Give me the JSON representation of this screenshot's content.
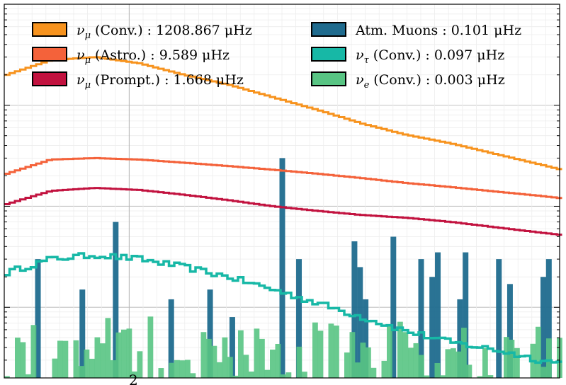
{
  "chart_data": {
    "type": "line",
    "x_scale": "log",
    "y_scale": "log",
    "grid": true,
    "legend_placement": "top",
    "visible_tick_label": "2",
    "x_range": [
      0,
      100
    ],
    "y_range": [
      0.02,
      100
    ],
    "series": [
      {
        "name": "νμ (Conv.) : 1208.867 μHz",
        "sym": "ν",
        "sub": "μ",
        "text": " (Conv.) : 1208.867 μHz",
        "color": "#f7931e",
        "style": "step",
        "x": [
          0,
          8,
          16,
          24,
          32,
          40,
          48,
          56,
          64,
          72,
          80,
          88,
          96,
          100
        ],
        "y": [
          20,
          28,
          30,
          26,
          20,
          16,
          12,
          9,
          6.6,
          5.1,
          4.2,
          3.3,
          2.6,
          2.3
        ]
      },
      {
        "name": "νμ (Astro.) : 9.589 μHz",
        "sym": "ν",
        "sub": "μ",
        "text": " (Astro.) : 9.589 μHz",
        "color": "#f4623a",
        "style": "step",
        "x": [
          0,
          8,
          16,
          24,
          32,
          40,
          48,
          56,
          64,
          72,
          80,
          88,
          96,
          100
        ],
        "y": [
          2.1,
          2.9,
          3.0,
          2.9,
          2.7,
          2.5,
          2.3,
          2.1,
          1.9,
          1.7,
          1.55,
          1.4,
          1.27,
          1.2
        ]
      },
      {
        "name": "νμ (Prompt.) : 1.668 μHz",
        "sym": "ν",
        "sub": "μ",
        "text": " (Prompt.) : 1.668 μHz",
        "color": "#c2123f",
        "style": "step",
        "x": [
          0,
          8,
          16,
          24,
          32,
          40,
          48,
          56,
          64,
          72,
          80,
          88,
          96,
          100
        ],
        "y": [
          1.05,
          1.42,
          1.52,
          1.45,
          1.3,
          1.15,
          1.0,
          0.9,
          0.82,
          0.77,
          0.7,
          0.62,
          0.55,
          0.52
        ]
      },
      {
        "name": "Atm. Muons : 0.101 μHz",
        "sym": "",
        "sub": "",
        "text": "Atm. Muons : 0.101 μHz",
        "color": "#1f6b8e",
        "style": "bars",
        "x": [
          6,
          14,
          20,
          30,
          37,
          41,
          50,
          53,
          63,
          64,
          65,
          70,
          75,
          77,
          78,
          82,
          83,
          89,
          91,
          97,
          98
        ],
        "y": [
          0.3,
          0.15,
          0.7,
          0.12,
          0.15,
          0.08,
          3.0,
          0.3,
          0.45,
          0.25,
          0.12,
          0.5,
          0.3,
          0.2,
          0.35,
          0.12,
          0.35,
          0.3,
          0.17,
          0.2,
          0.3
        ]
      },
      {
        "name": "ντ (Conv.) : 0.097 μHz",
        "sym": "ν",
        "sub": "τ",
        "text": " (Conv.) : 0.097 μHz",
        "color": "#17b8a6",
        "style": "step",
        "x": [
          0,
          8,
          16,
          24,
          32,
          40,
          48,
          56,
          64,
          72,
          80,
          88,
          96,
          100
        ],
        "y": [
          0.22,
          0.3,
          0.33,
          0.3,
          0.25,
          0.2,
          0.15,
          0.11,
          0.08,
          0.058,
          0.045,
          0.038,
          0.03,
          0.028
        ]
      },
      {
        "name": "νe (Conv.) : 0.003 μHz",
        "sym": "ν",
        "sub": "e",
        "text": " (Conv.) : 0.003 μHz",
        "color": "#58c483",
        "style": "noise",
        "x": [
          0,
          8,
          16,
          24,
          32,
          40,
          48,
          56,
          64,
          72,
          80,
          88,
          96,
          100
        ],
        "y": [
          0.04,
          0.035,
          0.045,
          0.05,
          0.04,
          0.045,
          0.035,
          0.04,
          0.05,
          0.04,
          0.045,
          0.04,
          0.035,
          0.04
        ]
      }
    ]
  }
}
